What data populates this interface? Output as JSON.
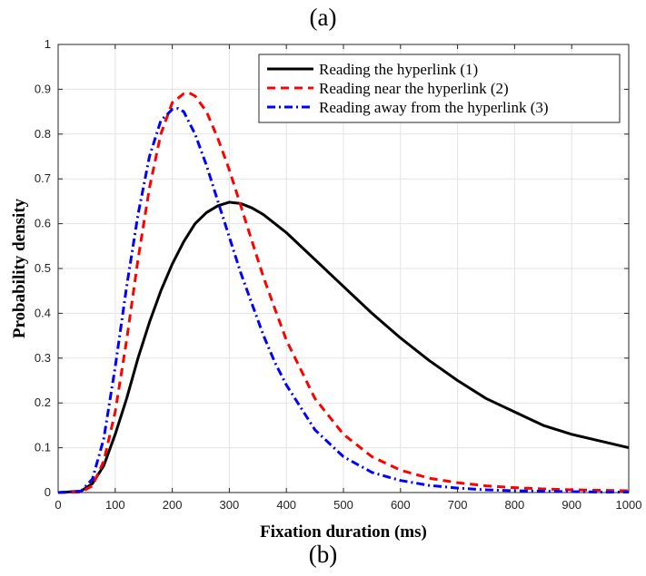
{
  "captions": {
    "top": "(a)",
    "bottom": "(b)"
  },
  "chart_data": {
    "type": "line",
    "title": "",
    "xlabel": "Fixation duration (ms)",
    "ylabel": "Probability density",
    "xlim": [
      0,
      1000
    ],
    "ylim": [
      0,
      1
    ],
    "xticks": [
      0,
      100,
      200,
      300,
      400,
      500,
      600,
      700,
      800,
      900,
      1000
    ],
    "yticks": [
      0,
      0.1,
      0.2,
      0.3,
      0.4,
      0.5,
      0.6,
      0.7,
      0.8,
      0.9,
      1
    ],
    "ytick_labels": [
      "0",
      "0.1",
      "0.2",
      "0.3",
      "0.4",
      "0.5",
      "0.6",
      "0.7",
      "0.8",
      "0.9",
      "1"
    ],
    "grid": true,
    "legend_position": "top-right",
    "series": [
      {
        "name": "Reading the hyperlink (1)",
        "color": "#000000",
        "style": "solid",
        "x": [
          0,
          40,
          60,
          80,
          100,
          120,
          140,
          160,
          180,
          200,
          220,
          240,
          260,
          280,
          300,
          320,
          340,
          360,
          380,
          400,
          450,
          500,
          550,
          600,
          650,
          700,
          750,
          800,
          850,
          900,
          950,
          1000
        ],
        "y": [
          0,
          0.003,
          0.02,
          0.06,
          0.13,
          0.21,
          0.3,
          0.38,
          0.45,
          0.51,
          0.56,
          0.6,
          0.625,
          0.64,
          0.648,
          0.645,
          0.635,
          0.62,
          0.6,
          0.58,
          0.52,
          0.46,
          0.4,
          0.345,
          0.295,
          0.25,
          0.21,
          0.18,
          0.15,
          0.13,
          0.115,
          0.1
        ]
      },
      {
        "name": "Reading near the hyperlink (2)",
        "color": "#ff0000",
        "style": "dashed",
        "x": [
          0,
          40,
          60,
          80,
          100,
          120,
          140,
          160,
          180,
          200,
          220,
          230,
          240,
          260,
          280,
          300,
          320,
          340,
          360,
          380,
          400,
          450,
          500,
          550,
          600,
          650,
          700,
          750,
          800,
          850,
          900,
          950,
          1000
        ],
        "y": [
          0,
          0.001,
          0.015,
          0.07,
          0.18,
          0.34,
          0.52,
          0.68,
          0.8,
          0.87,
          0.89,
          0.892,
          0.885,
          0.85,
          0.79,
          0.72,
          0.64,
          0.56,
          0.48,
          0.41,
          0.34,
          0.21,
          0.13,
          0.08,
          0.05,
          0.032,
          0.022,
          0.015,
          0.011,
          0.008,
          0.006,
          0.005,
          0.004
        ]
      },
      {
        "name": "Reading away from the hyperlink (3)",
        "color": "#0000ff",
        "style": "dashdot",
        "x": [
          0,
          40,
          60,
          80,
          100,
          120,
          140,
          160,
          180,
          200,
          210,
          220,
          240,
          260,
          280,
          300,
          320,
          340,
          360,
          380,
          400,
          450,
          500,
          550,
          600,
          650,
          700,
          750,
          800,
          850,
          900,
          950,
          1000
        ],
        "y": [
          0,
          0.003,
          0.03,
          0.12,
          0.28,
          0.46,
          0.62,
          0.75,
          0.83,
          0.855,
          0.857,
          0.85,
          0.8,
          0.73,
          0.65,
          0.57,
          0.49,
          0.42,
          0.35,
          0.29,
          0.24,
          0.14,
          0.08,
          0.045,
          0.027,
          0.016,
          0.01,
          0.006,
          0.004,
          0.003,
          0.002,
          0.001,
          0.001
        ]
      }
    ]
  }
}
